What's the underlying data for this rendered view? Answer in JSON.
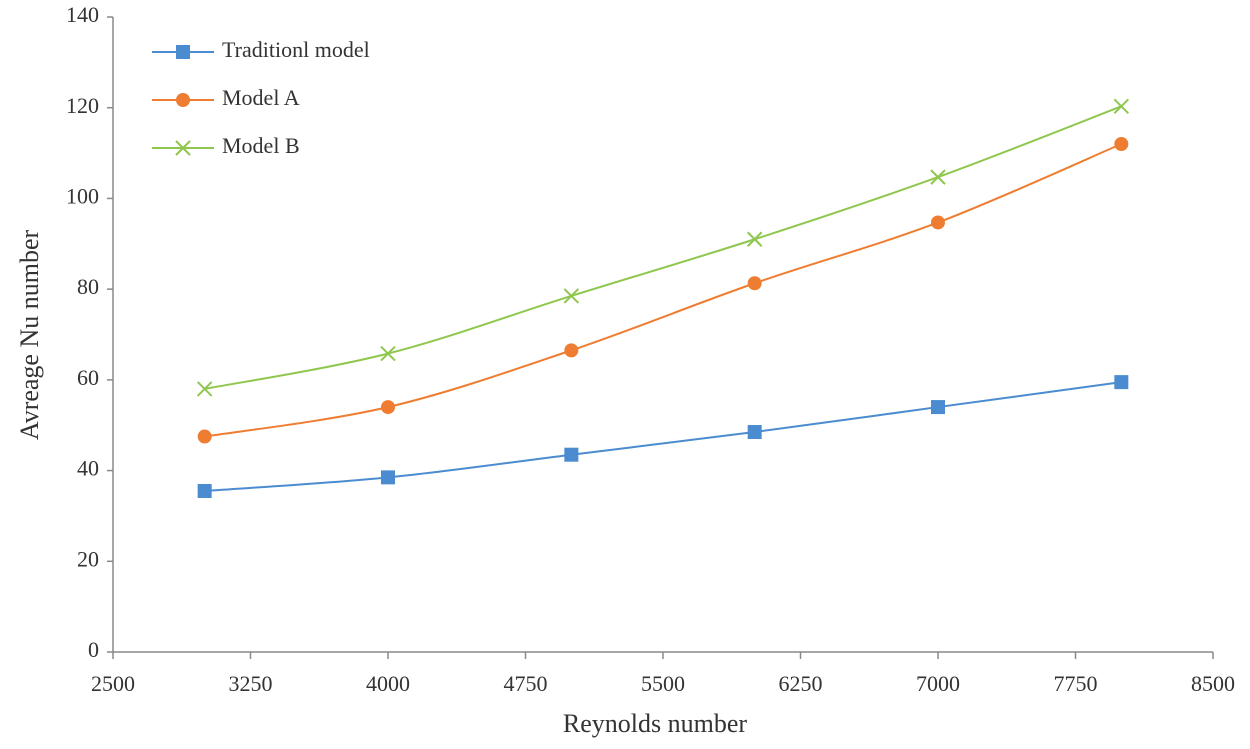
{
  "chart_data": {
    "type": "line",
    "x_label": "Reynolds number",
    "y_label": "Avreage Nu number",
    "x": [
      3000,
      4000,
      5000,
      6000,
      7000,
      8000
    ],
    "series": [
      {
        "name": "Traditionl model",
        "color": "#4a8ccf",
        "marker": "square",
        "values": [
          35.5,
          38.5,
          43.5,
          48.5,
          54,
          59.5
        ]
      },
      {
        "name": "Model A",
        "color": "#ee7d31",
        "marker": "circle",
        "values": [
          47.5,
          54,
          66.5,
          81.3,
          94.7,
          112
        ]
      },
      {
        "name": "Model B",
        "color": "#8fc74e",
        "marker": "x",
        "values": [
          58,
          65.8,
          78.5,
          91,
          104.7,
          120.3
        ]
      }
    ],
    "xlim": [
      2500,
      8500
    ],
    "xticks": [
      2500,
      3250,
      4000,
      4750,
      5500,
      6250,
      7000,
      7750,
      8500
    ],
    "ylim": [
      0,
      140
    ],
    "yticks": [
      0,
      20,
      40,
      60,
      80,
      100,
      120,
      140
    ],
    "grid": false,
    "legend": "upper left",
    "smooth": true
  }
}
